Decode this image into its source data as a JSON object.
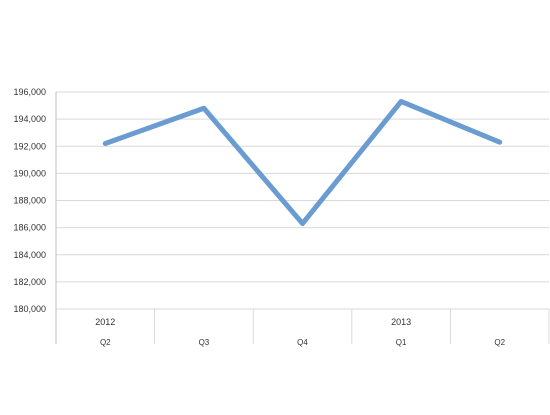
{
  "chart_data": {
    "type": "line",
    "title": "",
    "xlabel": "",
    "ylabel": "",
    "categories": [
      {
        "year": "2012",
        "quarter": "Q2"
      },
      {
        "year": "",
        "quarter": "Q3"
      },
      {
        "year": "",
        "quarter": "Q4"
      },
      {
        "year": "2013",
        "quarter": "Q1"
      },
      {
        "year": "",
        "quarter": "Q2"
      }
    ],
    "series": [
      {
        "values": [
          192200,
          194800,
          186300,
          195300,
          192300
        ],
        "color": "#6a9bd1"
      }
    ],
    "ylim": [
      180000,
      196000
    ],
    "yticks": [
      180000,
      182000,
      184000,
      186000,
      188000,
      190000,
      192000,
      194000,
      196000
    ],
    "ytick_labels": [
      "180,000",
      "182,000",
      "184,000",
      "186,000",
      "188,000",
      "190,000",
      "192,000",
      "194,000",
      "196,000"
    ],
    "grid": true,
    "legend": "none",
    "colors": {
      "grid": "#d9d9d9",
      "axis": "#bfbfbf",
      "line": "#6a9bd1"
    }
  }
}
